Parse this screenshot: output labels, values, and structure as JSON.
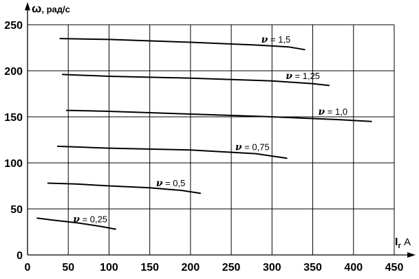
{
  "chart_data": {
    "type": "line",
    "ylabel_symbol": "ω",
    "ylabel_unit": ", рад/с",
    "xlabel_symbol": "I",
    "xlabel_subscript": "г",
    "xlabel_unit": "A",
    "xlim": [
      0,
      450
    ],
    "ylim": [
      0,
      250
    ],
    "xticks": [
      0,
      50,
      100,
      150,
      200,
      250,
      300,
      350,
      400,
      450
    ],
    "yticks": [
      0,
      50,
      100,
      150,
      200,
      250
    ],
    "grid": true,
    "series": [
      {
        "name": "ν = 0,25",
        "label_symbol": "ν",
        "label_value": " = 0,25",
        "x": [
          12,
          30,
          60,
          90,
          108
        ],
        "y": [
          40,
          38,
          35,
          31,
          28
        ]
      },
      {
        "name": "ν = 0,5",
        "label_symbol": "ν",
        "label_value": " = 0,5",
        "x": [
          25,
          60,
          100,
          150,
          190,
          212
        ],
        "y": [
          78,
          77,
          75,
          73,
          70,
          67
        ]
      },
      {
        "name": "ν = 0,75",
        "label_symbol": "ν",
        "label_value": " = 0,75",
        "x": [
          37,
          100,
          200,
          280,
          318
        ],
        "y": [
          118,
          116,
          114,
          110,
          105
        ]
      },
      {
        "name": "ν = 1,0",
        "label_symbol": "ν",
        "label_value": " = 1,0",
        "x": [
          48,
          100,
          200,
          300,
          380,
          422
        ],
        "y": [
          157,
          156,
          153,
          150,
          147,
          145
        ]
      },
      {
        "name": "ν = 1,25",
        "label_symbol": "ν",
        "label_value": " = 1,25",
        "x": [
          43,
          100,
          200,
          300,
          350,
          370
        ],
        "y": [
          196,
          194,
          192,
          189,
          186,
          184
        ]
      },
      {
        "name": "ν = 1,5",
        "label_symbol": "ν",
        "label_value": " = 1,5",
        "x": [
          40,
          100,
          200,
          280,
          320,
          340
        ],
        "y": [
          235,
          234,
          231,
          228,
          226,
          223
        ]
      }
    ]
  }
}
